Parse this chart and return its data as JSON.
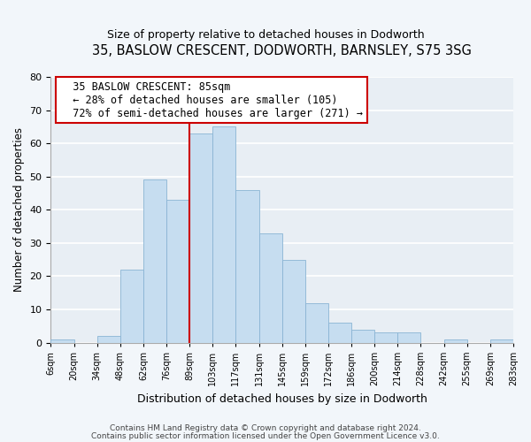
{
  "title_line1": "35, BASLOW CRESCENT, DODWORTH, BARNSLEY, S75 3SG",
  "title_line2": "Size of property relative to detached houses in Dodworth",
  "xlabel": "Distribution of detached houses by size in Dodworth",
  "ylabel": "Number of detached properties",
  "bar_labels": [
    "6sqm",
    "20sqm",
    "34sqm",
    "48sqm",
    "62sqm",
    "76sqm",
    "89sqm",
    "103sqm",
    "117sqm",
    "131sqm",
    "145sqm",
    "159sqm",
    "172sqm",
    "186sqm",
    "200sqm",
    "214sqm",
    "228sqm",
    "242sqm",
    "255sqm",
    "269sqm",
    "283sqm"
  ],
  "bar_values": [
    1,
    0,
    2,
    22,
    49,
    43,
    63,
    65,
    46,
    33,
    25,
    12,
    6,
    4,
    3,
    3,
    0,
    1,
    0,
    1
  ],
  "bar_color": "#c6ddf0",
  "bar_edge_color": "#8ab4d4",
  "vline_color": "#cc0000",
  "ylim": [
    0,
    80
  ],
  "yticks": [
    0,
    10,
    20,
    30,
    40,
    50,
    60,
    70,
    80
  ],
  "annotation_title": "35 BASLOW CRESCENT: 85sqm",
  "annotation_line1": "← 28% of detached houses are smaller (105)",
  "annotation_line2": "72% of semi-detached houses are larger (271) →",
  "annotation_box_color": "#ffffff",
  "annotation_box_edge": "#cc0000",
  "footer_line1": "Contains HM Land Registry data © Crown copyright and database right 2024.",
  "footer_line2": "Contains public sector information licensed under the Open Government Licence v3.0.",
  "background_color": "#f2f6fa",
  "plot_bg_color": "#e8eef4",
  "grid_color": "#ffffff"
}
